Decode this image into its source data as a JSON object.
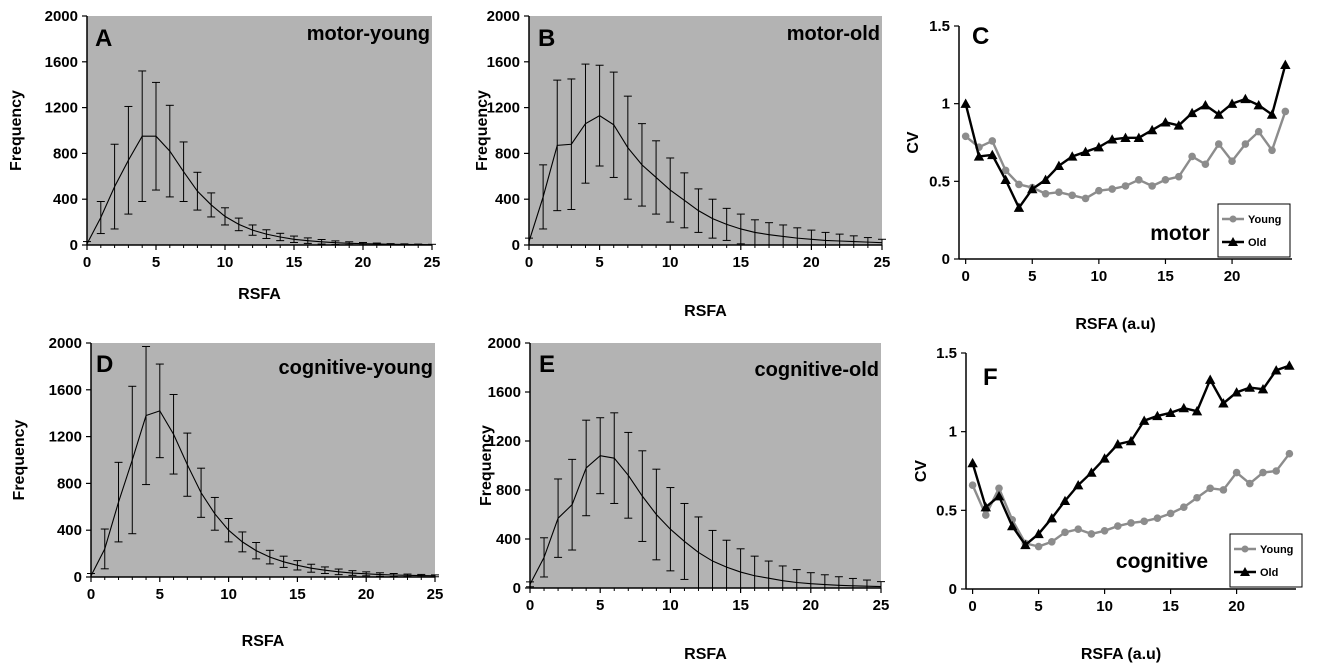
{
  "chart_data": [
    {
      "id": "A",
      "type": "line",
      "panel_letter": "A",
      "title": "motor-young",
      "xlabel": "RSFA",
      "ylabel": "Frequency",
      "xlim": [
        0,
        25
      ],
      "ylim": [
        0,
        2000
      ],
      "xticks": [
        "0",
        "5",
        "10",
        "15",
        "20",
        "25"
      ],
      "yticks": [
        "0",
        "400",
        "800",
        "1200",
        "1600",
        "2000"
      ],
      "background": "#b3b3b3",
      "grid": false,
      "x": [
        0,
        1,
        2,
        3,
        4,
        5,
        6,
        7,
        8,
        9,
        10,
        11,
        12,
        13,
        14,
        15,
        16,
        17,
        18,
        19,
        20,
        21,
        22,
        23,
        24,
        25
      ],
      "values": [
        10,
        240,
        510,
        740,
        950,
        950,
        820,
        640,
        470,
        350,
        250,
        180,
        130,
        95,
        70,
        50,
        38,
        28,
        20,
        15,
        12,
        9,
        6,
        5,
        4,
        3
      ],
      "errors": [
        20,
        140,
        370,
        470,
        570,
        470,
        400,
        260,
        165,
        105,
        75,
        55,
        45,
        38,
        32,
        28,
        24,
        20,
        16,
        13,
        10,
        8,
        6,
        5,
        4,
        3
      ]
    },
    {
      "id": "B",
      "type": "line",
      "panel_letter": "B",
      "title": "motor-old",
      "xlabel": "RSFA",
      "ylabel": "Frequency",
      "xlim": [
        0,
        25
      ],
      "ylim": [
        0,
        2000
      ],
      "xticks": [
        "0",
        "5",
        "10",
        "15",
        "20",
        "25"
      ],
      "yticks": [
        "0",
        "400",
        "800",
        "1200",
        "1600",
        "2000"
      ],
      "background": "#b3b3b3",
      "grid": false,
      "x": [
        0,
        1,
        2,
        3,
        4,
        5,
        6,
        7,
        8,
        9,
        10,
        11,
        12,
        13,
        14,
        15,
        16,
        17,
        18,
        19,
        20,
        21,
        22,
        23,
        24,
        25
      ],
      "values": [
        30,
        420,
        870,
        880,
        1060,
        1130,
        1050,
        850,
        700,
        590,
        480,
        390,
        300,
        230,
        180,
        140,
        110,
        90,
        75,
        60,
        50,
        40,
        35,
        30,
        25,
        20
      ],
      "errors": [
        30,
        280,
        570,
        570,
        520,
        440,
        460,
        450,
        360,
        320,
        280,
        240,
        190,
        170,
        140,
        130,
        110,
        105,
        100,
        90,
        80,
        70,
        60,
        50,
        40,
        30
      ]
    },
    {
      "id": "C",
      "type": "line",
      "panel_letter": "C",
      "title": "motor",
      "xlabel": "RSFA (a.u)",
      "ylabel": "CV",
      "xlim": [
        -0.5,
        24.5
      ],
      "ylim": [
        0,
        1.5
      ],
      "xticks": [
        "0",
        "5",
        "10",
        "15",
        "20"
      ],
      "yticks": [
        "0",
        "0.5",
        "1",
        "1.5"
      ],
      "background": "#ffffff",
      "grid": false,
      "legend": {
        "position": "bottom-right",
        "entries": [
          "Young",
          "Old"
        ]
      },
      "x": [
        0,
        1,
        2,
        3,
        4,
        5,
        6,
        7,
        8,
        9,
        10,
        11,
        12,
        13,
        14,
        15,
        16,
        17,
        18,
        19,
        20,
        21,
        22,
        23,
        24
      ],
      "series": [
        {
          "name": "Young",
          "marker": "circle",
          "color": "#8c8c8c",
          "values": [
            0.79,
            0.72,
            0.76,
            0.57,
            0.48,
            0.46,
            0.42,
            0.43,
            0.41,
            0.39,
            0.44,
            0.45,
            0.47,
            0.51,
            0.47,
            0.51,
            0.53,
            0.66,
            0.61,
            0.74,
            0.63,
            0.74,
            0.82,
            0.7,
            0.95
          ]
        },
        {
          "name": "Old",
          "marker": "triangle",
          "color": "#000000",
          "values": [
            1.0,
            0.66,
            0.67,
            0.51,
            0.33,
            0.45,
            0.51,
            0.6,
            0.66,
            0.69,
            0.72,
            0.77,
            0.78,
            0.78,
            0.83,
            0.88,
            0.86,
            0.94,
            0.99,
            0.93,
            1.0,
            1.03,
            0.99,
            0.93,
            1.25
          ]
        }
      ]
    },
    {
      "id": "D",
      "type": "line",
      "panel_letter": "D",
      "title": "cognitive-young",
      "xlabel": "RSFA",
      "ylabel": "Frequency",
      "xlim": [
        0,
        25
      ],
      "ylim": [
        0,
        2000
      ],
      "xticks": [
        "0",
        "5",
        "10",
        "15",
        "20",
        "25"
      ],
      "yticks": [
        "0",
        "400",
        "800",
        "1200",
        "1600",
        "2000"
      ],
      "background": "#b3b3b3",
      "grid": false,
      "x": [
        0,
        1,
        2,
        3,
        4,
        5,
        6,
        7,
        8,
        9,
        10,
        11,
        12,
        13,
        14,
        15,
        16,
        17,
        18,
        19,
        20,
        21,
        22,
        23,
        24,
        25
      ],
      "values": [
        10,
        240,
        640,
        1000,
        1380,
        1420,
        1220,
        960,
        720,
        540,
        400,
        300,
        225,
        170,
        130,
        100,
        75,
        58,
        44,
        34,
        27,
        21,
        17,
        14,
        12,
        10
      ],
      "errors": [
        20,
        170,
        340,
        630,
        590,
        400,
        340,
        270,
        210,
        140,
        100,
        85,
        70,
        58,
        48,
        40,
        34,
        28,
        24,
        20,
        17,
        15,
        13,
        11,
        10,
        8
      ]
    },
    {
      "id": "E",
      "type": "line",
      "panel_letter": "E",
      "title": "cognitive-old",
      "xlabel": "RSFA",
      "ylabel": "Frequency",
      "xlim": [
        0,
        25
      ],
      "ylim": [
        0,
        2000
      ],
      "xticks": [
        "0",
        "5",
        "10",
        "15",
        "20",
        "25"
      ],
      "yticks": [
        "0",
        "400",
        "800",
        "1200",
        "1600",
        "2000"
      ],
      "background": "#b3b3b3",
      "grid": false,
      "x": [
        0,
        1,
        2,
        3,
        4,
        5,
        6,
        7,
        8,
        9,
        10,
        11,
        12,
        13,
        14,
        15,
        16,
        17,
        18,
        19,
        20,
        21,
        22,
        23,
        24,
        25
      ],
      "values": [
        30,
        250,
        570,
        680,
        980,
        1080,
        1060,
        920,
        750,
        600,
        480,
        380,
        290,
        220,
        170,
        130,
        100,
        80,
        60,
        45,
        35,
        28,
        22,
        18,
        15,
        12
      ],
      "errors": [
        20,
        160,
        320,
        370,
        390,
        310,
        370,
        350,
        370,
        370,
        340,
        310,
        290,
        250,
        220,
        190,
        160,
        140,
        120,
        105,
        90,
        80,
        70,
        60,
        50,
        40
      ]
    },
    {
      "id": "F",
      "type": "line",
      "panel_letter": "F",
      "title": "cognitive",
      "xlabel": "RSFA (a.u)",
      "ylabel": "CV",
      "xlim": [
        -0.5,
        24.5
      ],
      "ylim": [
        0,
        1.5
      ],
      "xticks": [
        "0",
        "5",
        "10",
        "15",
        "20"
      ],
      "yticks": [
        "0",
        "0.5",
        "1",
        "1.5"
      ],
      "background": "#ffffff",
      "grid": false,
      "legend": {
        "position": "bottom-right",
        "entries": [
          "Young",
          "Old"
        ]
      },
      "x": [
        0,
        1,
        2,
        3,
        4,
        5,
        6,
        7,
        8,
        9,
        10,
        11,
        12,
        13,
        14,
        15,
        16,
        17,
        18,
        19,
        20,
        21,
        22,
        23,
        24
      ],
      "series": [
        {
          "name": "Young",
          "marker": "circle",
          "color": "#8c8c8c",
          "values": [
            0.66,
            0.47,
            0.64,
            0.44,
            0.29,
            0.27,
            0.3,
            0.36,
            0.38,
            0.35,
            0.37,
            0.4,
            0.42,
            0.43,
            0.45,
            0.48,
            0.52,
            0.58,
            0.64,
            0.63,
            0.74,
            0.67,
            0.74,
            0.75,
            0.86
          ]
        },
        {
          "name": "Old",
          "marker": "triangle",
          "color": "#000000",
          "values": [
            0.8,
            0.52,
            0.59,
            0.4,
            0.28,
            0.35,
            0.45,
            0.56,
            0.66,
            0.74,
            0.83,
            0.92,
            0.94,
            1.07,
            1.1,
            1.12,
            1.15,
            1.13,
            1.33,
            1.18,
            1.25,
            1.28,
            1.27,
            1.39,
            1.42
          ]
        }
      ]
    }
  ]
}
